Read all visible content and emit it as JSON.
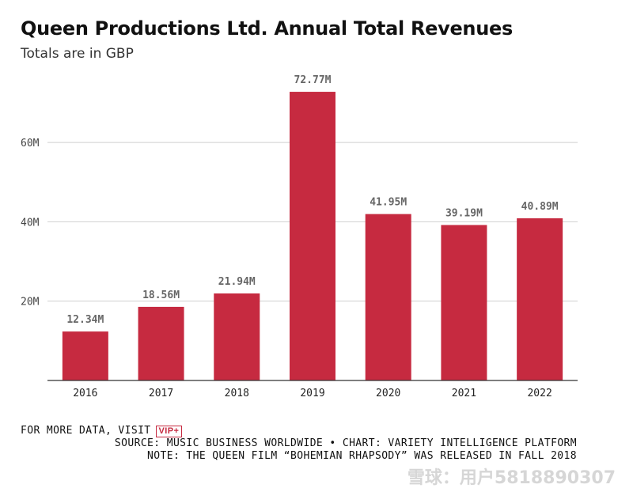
{
  "chart_data": {
    "type": "bar",
    "title": "Queen Productions Ltd. Annual Total Revenues",
    "subtitle": "Totals are in GBP",
    "categories": [
      "2016",
      "2017",
      "2018",
      "2019",
      "2020",
      "2021",
      "2022"
    ],
    "values": [
      12.34,
      18.56,
      21.94,
      72.77,
      41.95,
      39.19,
      40.89
    ],
    "value_labels": [
      "12.34M",
      "18.56M",
      "21.94M",
      "72.77M",
      "41.95M",
      "39.19M",
      "40.89M"
    ],
    "y_ticks": [
      20,
      40,
      60
    ],
    "y_tick_labels": [
      "20M",
      "40M",
      "60M"
    ],
    "ylim": [
      0,
      75
    ],
    "xlabel": "",
    "ylabel": "",
    "grid": true,
    "bar_color": "#c62a40"
  },
  "footer": {
    "visit_text": "FOR MORE DATA, VISIT",
    "vip_badge": "VIP+",
    "source": "SOURCE: MUSIC BUSINESS WORLDWIDE • CHART: VARIETY INTELLIGENCE PLATFORM",
    "note": "NOTE: THE QUEEN FILM “BOHEMIAN RHAPSODY” WAS RELEASED IN FALL 2018"
  },
  "watermark": "雪球：用户5818890307"
}
